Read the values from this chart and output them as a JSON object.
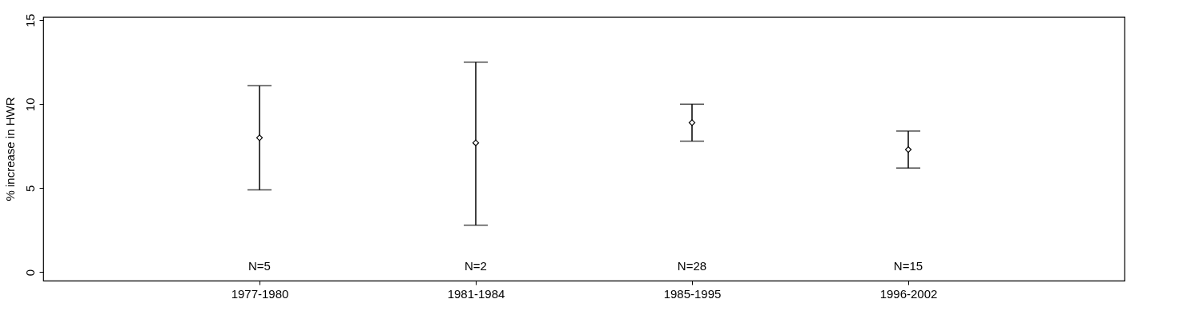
{
  "chart_data": {
    "type": "scatter",
    "ylabel": "% increase in HWR",
    "categories": [
      "1977-1980",
      "1981-1984",
      "1985-1995",
      "1996-2002"
    ],
    "values": [
      8.0,
      7.7,
      8.9,
      7.3
    ],
    "errors": [
      [
        4.9,
        11.1
      ],
      [
        2.8,
        12.5
      ],
      [
        7.8,
        10.0
      ],
      [
        6.2,
        8.4
      ]
    ],
    "color": "#000000",
    "marker": "diamond",
    "grid": false,
    "ylim": [
      -0.5,
      15.2
    ],
    "yticks": [
      0,
      5,
      10,
      15
    ],
    "annotations": [
      "N=5",
      "N=2",
      "N=28",
      "N=15"
    ]
  }
}
